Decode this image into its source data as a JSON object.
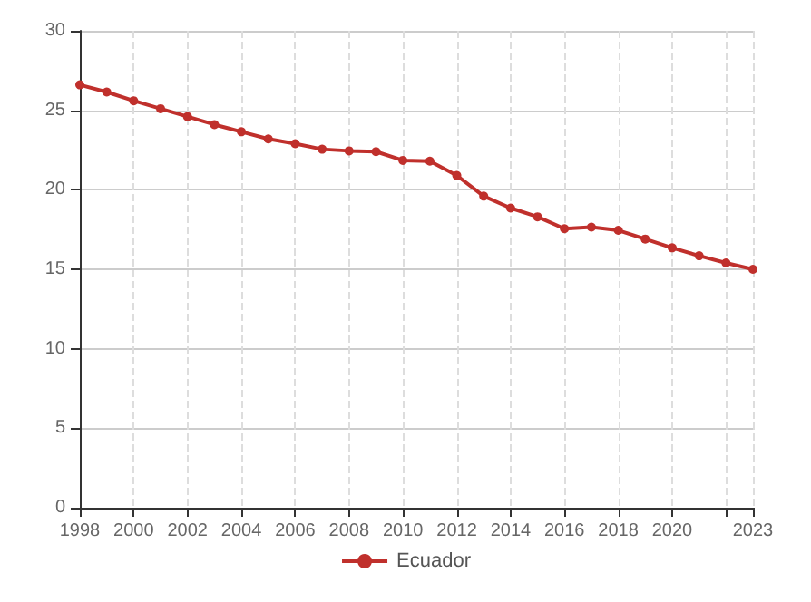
{
  "chart_data": {
    "type": "line",
    "x": [
      1998,
      1999,
      2000,
      2001,
      2002,
      2003,
      2004,
      2005,
      2006,
      2007,
      2008,
      2009,
      2010,
      2011,
      2012,
      2013,
      2014,
      2015,
      2016,
      2017,
      2018,
      2019,
      2020,
      2021,
      2022,
      2023
    ],
    "series": [
      {
        "name": "Ecuador",
        "color": "#c0302c",
        "values": [
          26.6,
          26.15,
          25.6,
          25.1,
          24.6,
          24.1,
          23.65,
          23.2,
          22.9,
          22.55,
          22.45,
          22.4,
          21.85,
          21.8,
          20.9,
          19.6,
          18.85,
          18.3,
          17.55,
          17.65,
          17.45,
          16.9,
          16.35,
          15.85,
          15.4,
          15.0
        ]
      }
    ],
    "xlim": [
      1998,
      2023
    ],
    "xticks": [
      1998,
      2000,
      2002,
      2004,
      2006,
      2008,
      2010,
      2012,
      2014,
      2016,
      2018,
      2020,
      {
        "value": 2022,
        "label": null
      },
      2023
    ],
    "ylim": [
      0,
      30
    ],
    "yticks": [
      0,
      5,
      10,
      15,
      20,
      25,
      30
    ],
    "grid": true,
    "legend": "bottom",
    "marker": "circle",
    "line_style": "solid"
  }
}
